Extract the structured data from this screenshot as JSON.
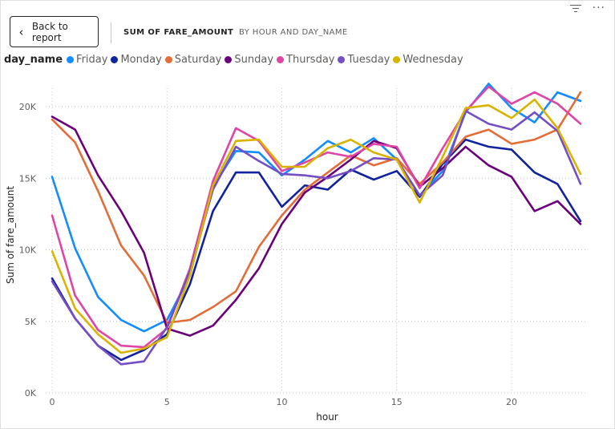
{
  "header": {
    "back_button": "Back to report",
    "tab_active": "SUM OF FARE_AMOUNT",
    "tab_inactive": "BY HOUR AND DAY_NAME"
  },
  "legend": {
    "title": "day_name",
    "items": [
      {
        "label": "Friday",
        "color": "#118DFF"
      },
      {
        "label": "Monday",
        "color": "#12239E"
      },
      {
        "label": "Saturday",
        "color": "#E66C37"
      },
      {
        "label": "Sunday",
        "color": "#6B007B"
      },
      {
        "label": "Thursday",
        "color": "#E044A7"
      },
      {
        "label": "Tuesday",
        "color": "#744EC2"
      },
      {
        "label": "Wednesday",
        "color": "#D9B300"
      }
    ]
  },
  "chart_data": {
    "type": "line",
    "xlabel": "hour",
    "ylabel": "Sum of fare_amount",
    "x": [
      0,
      1,
      2,
      3,
      4,
      5,
      6,
      7,
      8,
      9,
      10,
      11,
      12,
      13,
      14,
      15,
      16,
      17,
      18,
      19,
      20,
      21,
      22,
      23
    ],
    "xticks": [
      0,
      5,
      10,
      15,
      20
    ],
    "xtick_labels": [
      "0",
      "5",
      "10",
      "15",
      "20"
    ],
    "ylim": [
      0,
      22000
    ],
    "yticks": [
      0,
      5000,
      10000,
      15000,
      20000
    ],
    "ytick_labels": [
      "0K",
      "5K",
      "10K",
      "15K",
      "20K"
    ],
    "grid": true,
    "legend_position": "top-left",
    "series": [
      {
        "name": "Friday",
        "color": "#118DFF",
        "values": [
          15100,
          10100,
          6700,
          5100,
          4300,
          5100,
          8200,
          14400,
          16900,
          16800,
          15200,
          16300,
          17600,
          16800,
          17800,
          16300,
          13800,
          15500,
          19600,
          21600,
          19900,
          18900,
          21000,
          20400
        ]
      },
      {
        "name": "Monday",
        "color": "#12239E",
        "values": [
          8000,
          5200,
          3300,
          2300,
          3000,
          4100,
          7600,
          12700,
          15400,
          15400,
          13000,
          14500,
          14200,
          15600,
          14900,
          15500,
          13700,
          16000,
          17700,
          17200,
          17000,
          15400,
          14600,
          12000
        ]
      },
      {
        "name": "Saturday",
        "color": "#E66C37",
        "values": [
          19100,
          17500,
          14100,
          10300,
          8200,
          4900,
          5100,
          6000,
          7100,
          10200,
          12400,
          14200,
          15400,
          16600,
          15900,
          16400,
          14600,
          16100,
          17900,
          18400,
          17400,
          17700,
          18400,
          21000
        ]
      },
      {
        "name": "Sunday",
        "color": "#6B007B",
        "values": [
          19300,
          18400,
          15200,
          12700,
          9800,
          4500,
          4000,
          4700,
          6500,
          8700,
          11800,
          14000,
          15100,
          16300,
          17600,
          17100,
          14400,
          15700,
          17200,
          15900,
          15100,
          12700,
          13400,
          11800
        ]
      },
      {
        "name": "Thursday",
        "color": "#E044A7",
        "values": [
          12400,
          6800,
          4400,
          3300,
          3200,
          4500,
          8700,
          14800,
          18500,
          17600,
          15500,
          16100,
          16800,
          16500,
          17400,
          17200,
          14300,
          17100,
          19700,
          21400,
          20200,
          21000,
          20200,
          18800
        ]
      },
      {
        "name": "Tuesday",
        "color": "#744EC2",
        "values": [
          7800,
          5200,
          3300,
          2000,
          2200,
          4600,
          8500,
          14200,
          17200,
          16200,
          15300,
          15200,
          15000,
          15500,
          16400,
          16300,
          13800,
          15200,
          19700,
          18800,
          18400,
          19600,
          18300,
          14600
        ]
      },
      {
        "name": "Wednesday",
        "color": "#D9B300",
        "values": [
          9900,
          5900,
          4100,
          2800,
          3100,
          3900,
          8200,
          14500,
          17600,
          17700,
          15800,
          15800,
          17100,
          17700,
          16800,
          16300,
          13300,
          16500,
          19900,
          20100,
          19200,
          20500,
          18500,
          15300
        ]
      }
    ]
  }
}
